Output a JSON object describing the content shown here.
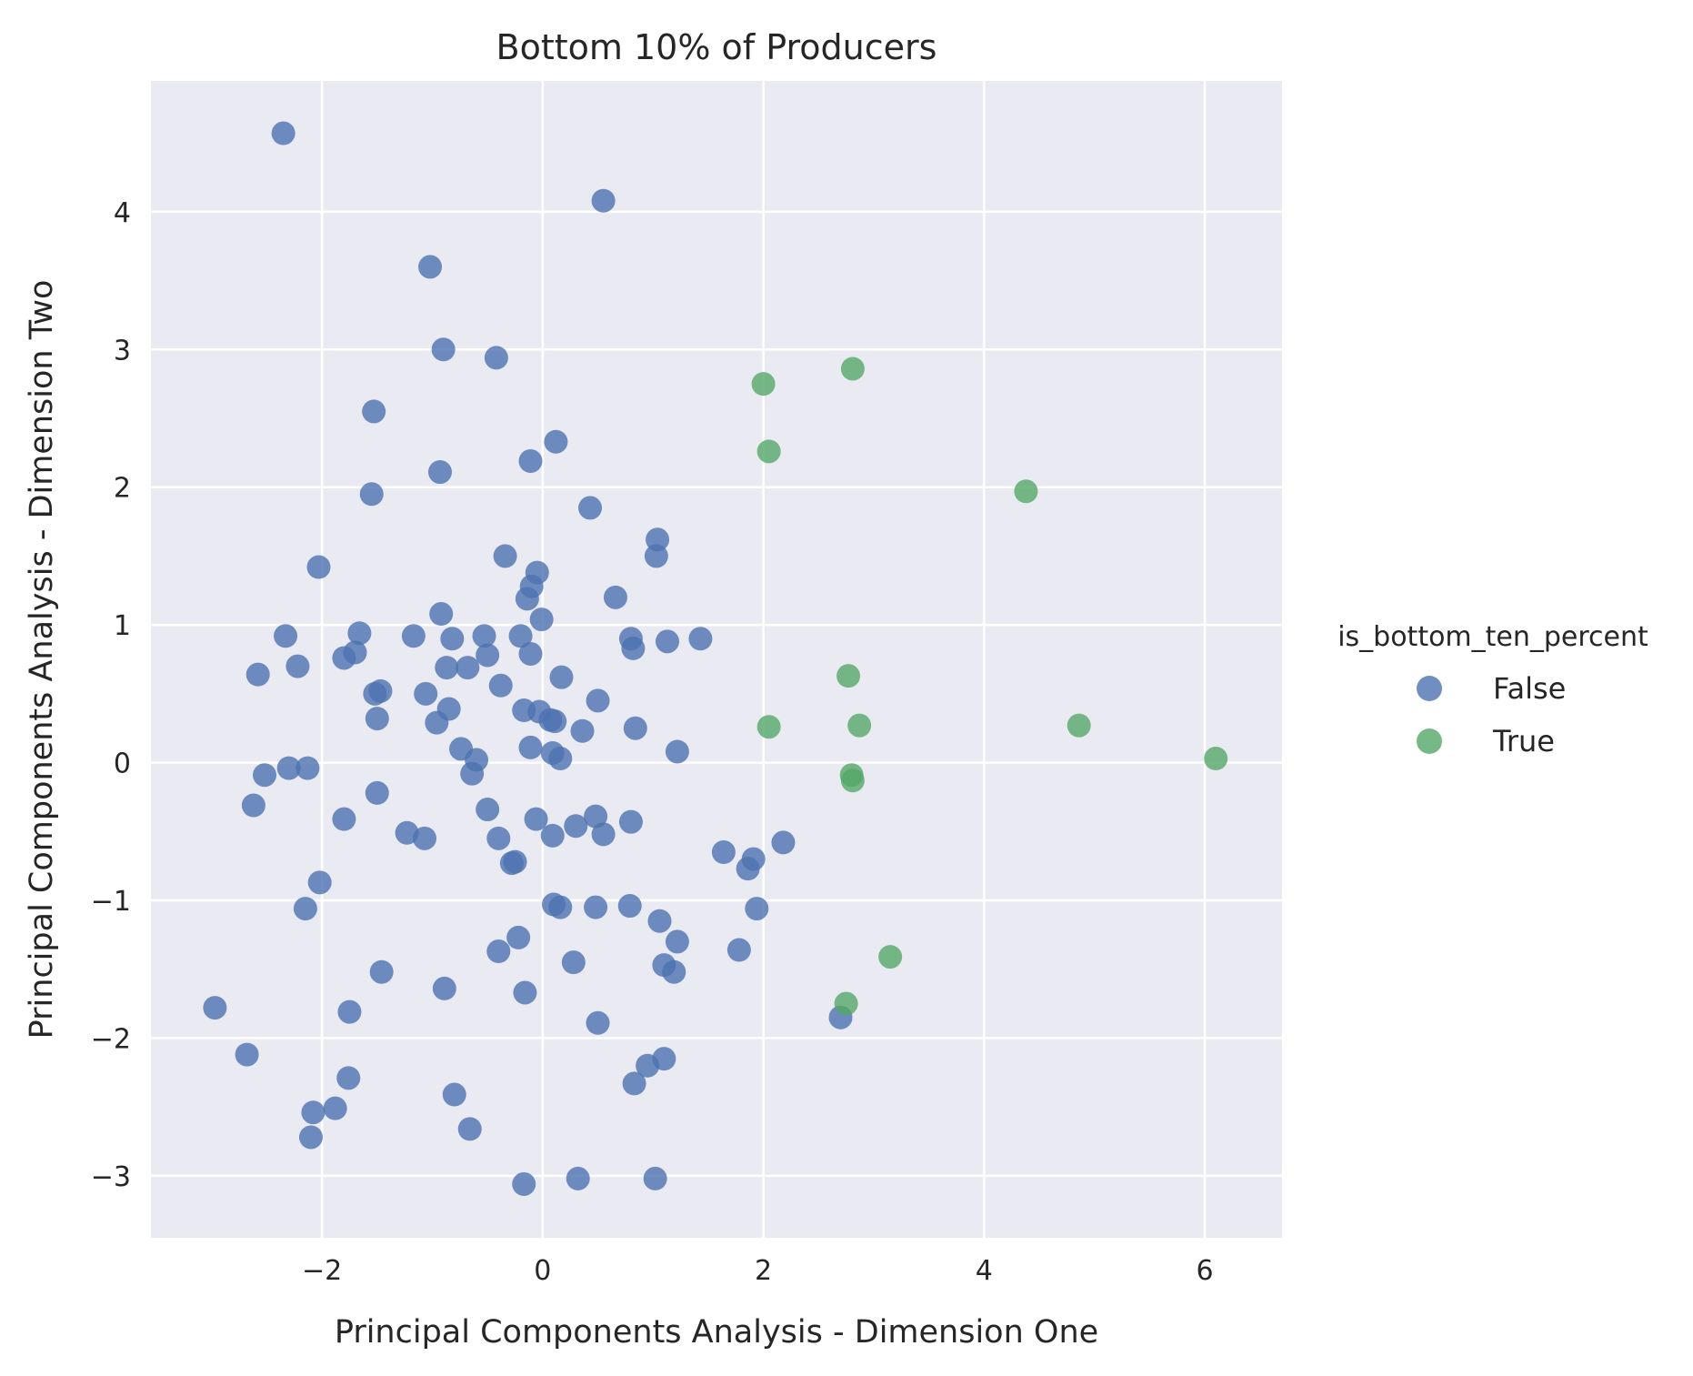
{
  "chart_data": {
    "type": "scatter",
    "title": "Bottom 10% of Producers",
    "xlabel": "Principal Components Analysis - Dimension One",
    "ylabel": "Principal Components Analysis - Dimension Two",
    "xlim": [
      -3.55,
      6.7
    ],
    "ylim": [
      -3.45,
      4.95
    ],
    "xticks": [
      -2,
      0,
      2,
      4,
      6
    ],
    "yticks": [
      -3,
      -2,
      -1,
      0,
      1,
      2,
      3,
      4
    ],
    "xtick_labels": [
      "−2",
      "0",
      "2",
      "4",
      "6"
    ],
    "ytick_labels": [
      "−3",
      "−2",
      "−1",
      "0",
      "1",
      "2",
      "3",
      "4"
    ],
    "grid": true,
    "legend": {
      "title": "is_bottom_ten_percent",
      "position": "right"
    },
    "series": [
      {
        "name": "False",
        "color": "#4c72b0",
        "points": [
          [
            -2.35,
            4.57
          ],
          [
            0.55,
            4.08
          ],
          [
            -1.02,
            3.6
          ],
          [
            -0.9,
            3.0
          ],
          [
            -0.42,
            2.94
          ],
          [
            -1.53,
            2.55
          ],
          [
            0.12,
            2.33
          ],
          [
            -0.11,
            2.19
          ],
          [
            -0.93,
            2.11
          ],
          [
            -1.55,
            1.95
          ],
          [
            0.43,
            1.85
          ],
          [
            1.04,
            1.62
          ],
          [
            1.03,
            1.5
          ],
          [
            -0.34,
            1.5
          ],
          [
            -2.03,
            1.42
          ],
          [
            -0.05,
            1.38
          ],
          [
            -0.1,
            1.28
          ],
          [
            -0.14,
            1.19
          ],
          [
            0.66,
            1.2
          ],
          [
            -0.92,
            1.08
          ],
          [
            -0.01,
            1.04
          ],
          [
            -1.66,
            0.94
          ],
          [
            -2.33,
            0.92
          ],
          [
            -1.17,
            0.92
          ],
          [
            -0.82,
            0.9
          ],
          [
            -0.53,
            0.92
          ],
          [
            -0.2,
            0.92
          ],
          [
            0.8,
            0.9
          ],
          [
            0.82,
            0.83
          ],
          [
            1.13,
            0.88
          ],
          [
            1.43,
            0.9
          ],
          [
            -1.7,
            0.8
          ],
          [
            -1.8,
            0.76
          ],
          [
            -0.5,
            0.78
          ],
          [
            -0.11,
            0.79
          ],
          [
            -2.22,
            0.7
          ],
          [
            -0.87,
            0.69
          ],
          [
            -0.68,
            0.69
          ],
          [
            -2.58,
            0.64
          ],
          [
            0.17,
            0.62
          ],
          [
            -1.47,
            0.52
          ],
          [
            -1.52,
            0.5
          ],
          [
            -1.06,
            0.5
          ],
          [
            -0.38,
            0.56
          ],
          [
            0.5,
            0.45
          ],
          [
            -0.85,
            0.39
          ],
          [
            -0.17,
            0.38
          ],
          [
            -0.03,
            0.37
          ],
          [
            0.07,
            0.31
          ],
          [
            0.11,
            0.3
          ],
          [
            -1.5,
            0.32
          ],
          [
            -0.96,
            0.29
          ],
          [
            0.84,
            0.25
          ],
          [
            0.36,
            0.23
          ],
          [
            -0.74,
            0.1
          ],
          [
            -0.11,
            0.11
          ],
          [
            -0.6,
            0.02
          ],
          [
            0.09,
            0.07
          ],
          [
            0.16,
            0.03
          ],
          [
            1.22,
            0.08
          ],
          [
            -2.3,
            -0.04
          ],
          [
            -2.13,
            -0.04
          ],
          [
            -2.52,
            -0.09
          ],
          [
            -0.64,
            -0.08
          ],
          [
            -2.62,
            -0.31
          ],
          [
            -1.5,
            -0.22
          ],
          [
            -0.5,
            -0.34
          ],
          [
            -1.8,
            -0.41
          ],
          [
            -0.06,
            -0.41
          ],
          [
            0.48,
            -0.39
          ],
          [
            0.8,
            -0.43
          ],
          [
            0.3,
            -0.46
          ],
          [
            -1.23,
            -0.51
          ],
          [
            -1.07,
            -0.55
          ],
          [
            -0.4,
            -0.55
          ],
          [
            0.09,
            -0.53
          ],
          [
            0.55,
            -0.52
          ],
          [
            2.18,
            -0.58
          ],
          [
            1.64,
            -0.65
          ],
          [
            1.91,
            -0.7
          ],
          [
            1.86,
            -0.77
          ],
          [
            -0.28,
            -0.73
          ],
          [
            -0.25,
            -0.72
          ],
          [
            -2.02,
            -0.87
          ],
          [
            -2.15,
            -1.06
          ],
          [
            0.1,
            -1.03
          ],
          [
            0.16,
            -1.05
          ],
          [
            0.48,
            -1.05
          ],
          [
            0.79,
            -1.04
          ],
          [
            1.94,
            -1.06
          ],
          [
            1.06,
            -1.15
          ],
          [
            -0.22,
            -1.27
          ],
          [
            1.22,
            -1.3
          ],
          [
            1.78,
            -1.36
          ],
          [
            -0.4,
            -1.37
          ],
          [
            -1.46,
            -1.52
          ],
          [
            0.28,
            -1.45
          ],
          [
            1.1,
            -1.47
          ],
          [
            1.19,
            -1.52
          ],
          [
            -0.89,
            -1.64
          ],
          [
            -0.16,
            -1.67
          ],
          [
            -2.97,
            -1.78
          ],
          [
            -1.75,
            -1.81
          ],
          [
            2.7,
            -1.85
          ],
          [
            0.5,
            -1.89
          ],
          [
            -2.68,
            -2.12
          ],
          [
            0.95,
            -2.2
          ],
          [
            1.1,
            -2.15
          ],
          [
            -1.76,
            -2.29
          ],
          [
            0.83,
            -2.33
          ],
          [
            -0.8,
            -2.41
          ],
          [
            -2.08,
            -2.54
          ],
          [
            -1.88,
            -2.51
          ],
          [
            -0.66,
            -2.66
          ],
          [
            -2.1,
            -2.72
          ],
          [
            0.32,
            -3.02
          ],
          [
            1.02,
            -3.02
          ],
          [
            -0.17,
            -3.06
          ]
        ]
      },
      {
        "name": "True",
        "color": "#55a868",
        "points": [
          [
            2.81,
            2.86
          ],
          [
            2.0,
            2.75
          ],
          [
            2.05,
            2.26
          ],
          [
            4.38,
            1.97
          ],
          [
            2.77,
            0.63
          ],
          [
            2.87,
            0.27
          ],
          [
            2.05,
            0.26
          ],
          [
            4.86,
            0.27
          ],
          [
            6.1,
            0.03
          ],
          [
            2.8,
            -0.09
          ],
          [
            2.81,
            -0.13
          ],
          [
            3.15,
            -1.41
          ],
          [
            2.75,
            -1.75
          ]
        ]
      }
    ]
  }
}
